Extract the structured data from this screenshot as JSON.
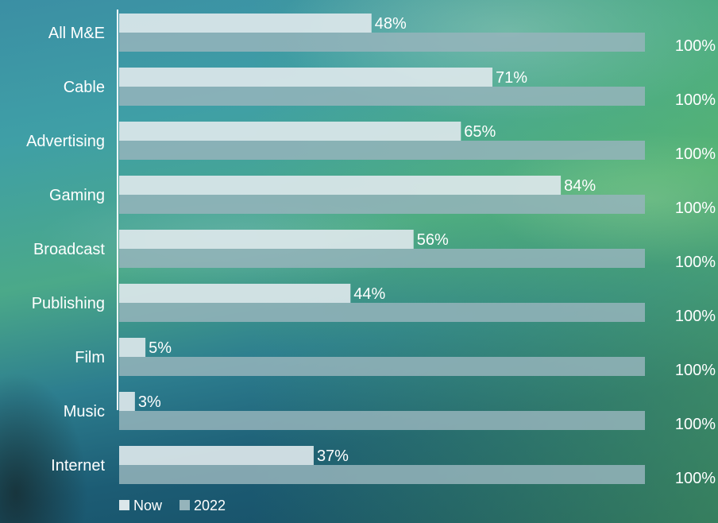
{
  "chart_data": {
    "type": "bar",
    "orientation": "horizontal",
    "categories": [
      "All M&E",
      "Cable",
      "Advertising",
      "Gaming",
      "Broadcast",
      "Publishing",
      "Film",
      "Music",
      "Internet"
    ],
    "series": [
      {
        "name": "Now",
        "values": [
          48,
          71,
          65,
          84,
          56,
          44,
          5,
          3,
          37
        ],
        "labels": [
          "48%",
          "71%",
          "65%",
          "84%",
          "56%",
          "44%",
          "5%",
          "3%",
          "37%"
        ],
        "color": "#dce7ea"
      },
      {
        "name": "2022",
        "values": [
          100,
          100,
          100,
          100,
          100,
          100,
          100,
          100,
          100
        ],
        "labels": [
          "100%",
          "100%",
          "100%",
          "100%",
          "100%",
          "100%",
          "100%",
          "100%",
          "100%"
        ],
        "color": "#95b4bb"
      }
    ],
    "xlim": [
      0,
      100
    ],
    "grid": false,
    "legend_position": "bottom-left"
  }
}
